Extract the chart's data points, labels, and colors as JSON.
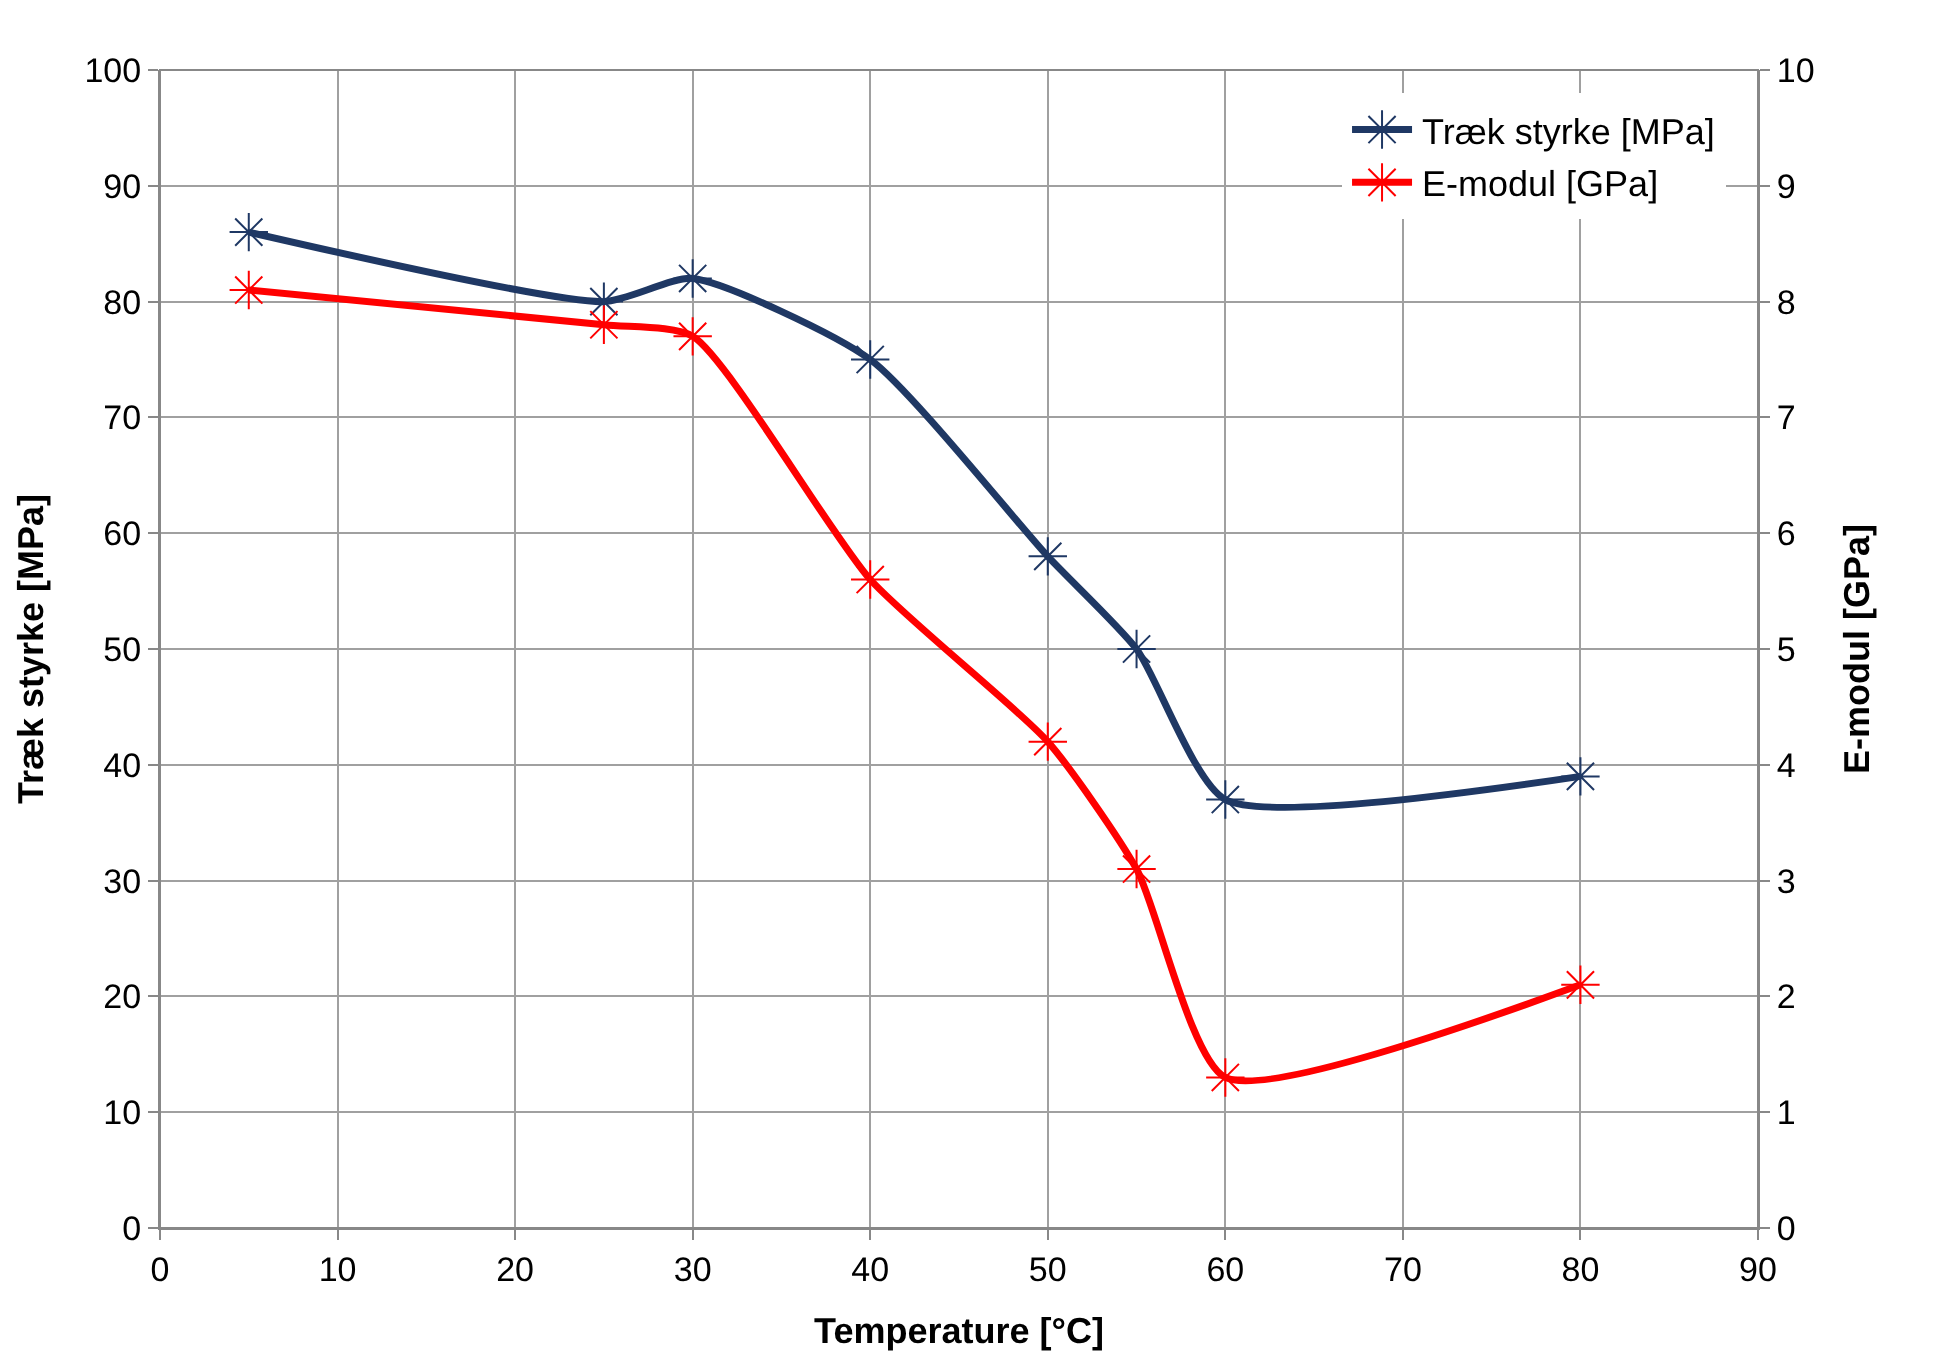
{
  "chart_data": {
    "type": "line",
    "xlabel": "Temperature [°C]",
    "ylabel": "Træk styrke [MPa]",
    "y2label": "E-modul [GPa]",
    "x": [
      5,
      25,
      30,
      40,
      50,
      55,
      60,
      80
    ],
    "series": [
      {
        "name": "Træk styrke [MPa]",
        "color": "#1f3864",
        "values": [
          86,
          80,
          82,
          75,
          58,
          50,
          37,
          39
        ]
      },
      {
        "name": "E-modul [GPa]",
        "color": "#ff0000",
        "axis": "y2",
        "values": [
          8.1,
          7.8,
          7.7,
          5.6,
          4.2,
          3.1,
          1.3,
          2.1
        ]
      }
    ],
    "xlim": [
      0,
      90
    ],
    "xticks": [
      0,
      10,
      20,
      30,
      40,
      50,
      60,
      70,
      80,
      90
    ],
    "ylim": [
      0,
      100
    ],
    "yticks": [
      0,
      10,
      20,
      30,
      40,
      50,
      60,
      70,
      80,
      90,
      100
    ],
    "y2lim": [
      0,
      10
    ],
    "y2ticks": [
      0,
      1,
      2,
      3,
      4,
      5,
      6,
      7,
      8,
      9,
      10
    ],
    "grid": true,
    "legend": "top right",
    "marker": "cross",
    "line_style": "solid"
  }
}
